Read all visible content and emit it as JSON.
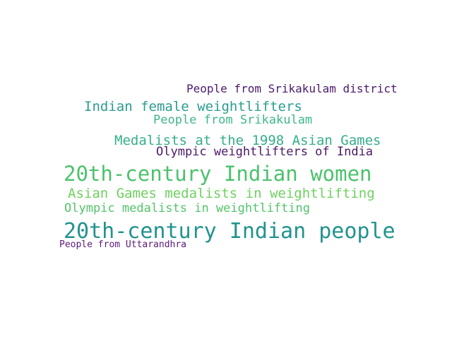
{
  "words": [
    {
      "text": "People from Srikakulam district",
      "color": "#4a1a6b"
    },
    {
      "text": "Indian female weightlifters",
      "color": "#2a9d8f"
    },
    {
      "text": "People from Srikakulam",
      "color": "#3fb68b"
    },
    {
      "text": "Medalists at the 1998 Asian Games",
      "color": "#35ae8a"
    },
    {
      "text": "Olympic weightlifters of India",
      "color": "#4b1a66"
    },
    {
      "text": "20th-century Indian women",
      "color": "#4cc26c"
    },
    {
      "text": "Asian Games medalists in weightlifting",
      "color": "#6fd060"
    },
    {
      "text": "Olympic medalists in weightlifting",
      "color": "#52c46a"
    },
    {
      "text": "20th-century Indian people",
      "color": "#21938e"
    },
    {
      "text": "People from Uttarandhra",
      "color": "#5a1a78"
    }
  ]
}
